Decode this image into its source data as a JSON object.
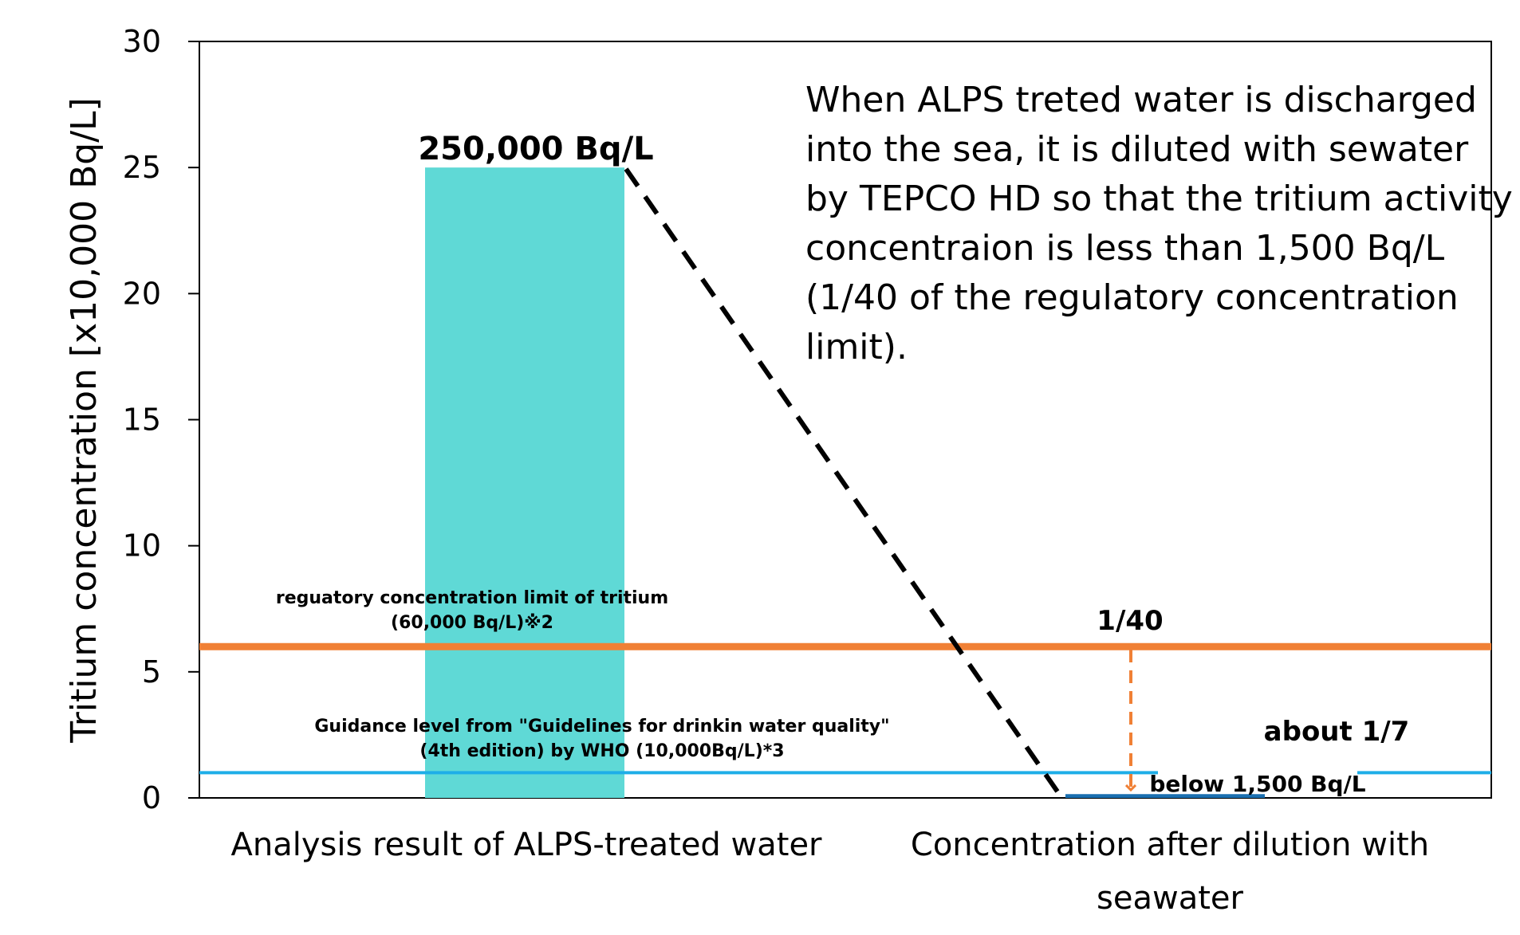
{
  "chart_data": {
    "type": "bar",
    "categories": [
      "Analysis result of ALPS-treated water",
      "Concentration after dilution with seawater"
    ],
    "values": [
      25,
      0.15
    ],
    "ylabel": "Tritium concentration [x10,000 Bq/L]",
    "ylim": [
      0,
      30
    ],
    "yticks": [
      "0",
      "5",
      "10",
      "15",
      "20",
      "25",
      "30"
    ],
    "bar_color": "#5fd9d6",
    "data_labels": [
      "250,000 Bq/L",
      "below 1,500 Bq/L"
    ],
    "reference_lines": [
      {
        "value": 6,
        "color": "#f08035",
        "label_line1": "reguatory concentration limit of tritium",
        "label_line2": "(60,000 Bq/L)※2"
      },
      {
        "value": 1,
        "color": "#1eaee8",
        "label_line1": "Guidance level from \"Guidelines for drinkin water quality\"",
        "label_line2": "(4th edition) by WHO (10,000Bq/L)*3"
      }
    ],
    "annotations": {
      "ratio_limit": "1/40",
      "ratio_who": "about 1/7",
      "note_lines": [
        "When ALPS treted water is discharged",
        "into the sea, it is diluted with sewater",
        "by TEPCO HD so that the tritium activity",
        "concentraion is less than 1,500 Bq/L",
        "(1/40 of the regulatory concentration",
        "limit)."
      ]
    },
    "grid": false
  }
}
